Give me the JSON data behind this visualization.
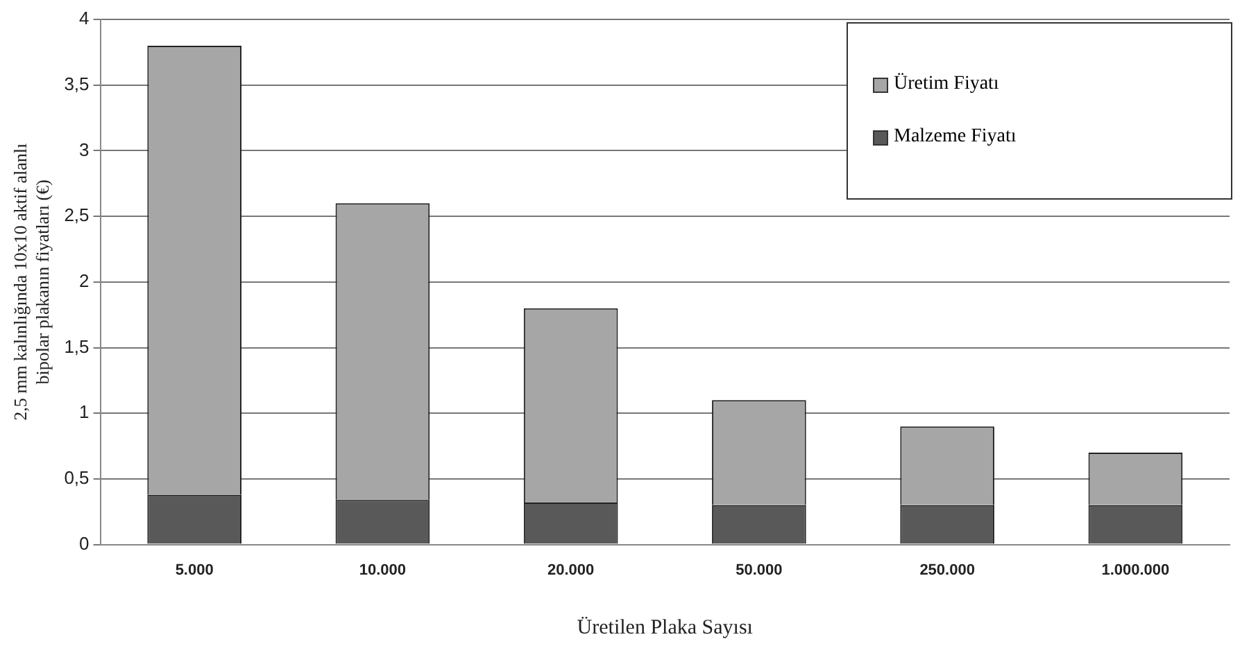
{
  "chart_data": {
    "type": "bar",
    "stacked": true,
    "xlabel": "Üretilen Plaka Sayısı",
    "ylabel": "2,5 mm kalınlığında 10x10 aktif alanlı bipolar plakanın fiyatları  (€)",
    "categories": [
      "5.000",
      "10.000",
      "20.000",
      "50.000",
      "250.000",
      "1.000.000"
    ],
    "series": [
      {
        "name": "Malzeme Fiyatı",
        "color": "#595959",
        "values": [
          0.38,
          0.34,
          0.32,
          0.3,
          0.3,
          0.3
        ]
      },
      {
        "name": "Üretim Fiyatı",
        "color": "#a6a6a6",
        "values": [
          3.42,
          2.26,
          1.48,
          0.8,
          0.6,
          0.4
        ]
      }
    ],
    "ylim": [
      0,
      4
    ],
    "yticks": [
      0,
      {
        "value": 0.5,
        "label": "0,5"
      },
      1,
      {
        "value": 1.5,
        "label": "1,5"
      },
      2,
      {
        "value": 2.5,
        "label": "2,5"
      },
      3,
      {
        "value": 3.5,
        "label": "3,5"
      },
      4
    ],
    "grid": "y",
    "legend": "top right"
  }
}
